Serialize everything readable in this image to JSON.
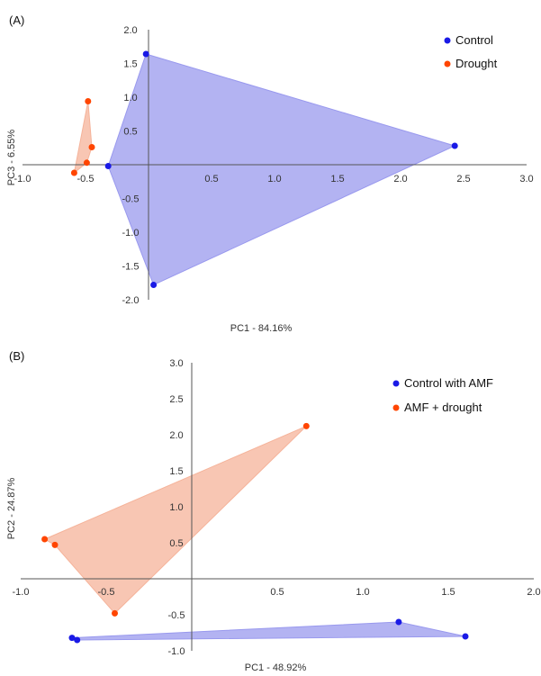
{
  "chart_data": [
    {
      "panel_label": "(A)",
      "type": "scatter",
      "title": "",
      "xlabel": "PC1 - 84.16%",
      "ylabel": "PC3 - 6.55%",
      "xlim": [
        -1.0,
        3.0
      ],
      "ylim": [
        -2.0,
        2.0
      ],
      "xticks": [
        -1.0,
        -0.5,
        0.5,
        1.0,
        1.5,
        2.0,
        2.5,
        3.0
      ],
      "xtick_labels": [
        "-1.0",
        "-0.5",
        "0.5",
        "1.0",
        "1.5",
        "2.0",
        "2.5",
        "3.0"
      ],
      "yticks": [
        2.0,
        1.5,
        1.0,
        0.5,
        -0.5,
        -1.0,
        -1.5,
        -2.0
      ],
      "ytick_labels": [
        "2.0",
        "1.5",
        "1.0",
        "0.5",
        "-0.5",
        "-1.0",
        "-1.5",
        "-2.0"
      ],
      "legend_position": "top-right",
      "series": [
        {
          "name": "Control",
          "color": "#1a1ae6",
          "fill": "#9999ee",
          "points": [
            [
              -0.02,
              1.64
            ],
            [
              2.43,
              0.28
            ],
            [
              0.04,
              -1.78
            ],
            [
              -0.32,
              -0.02
            ]
          ]
        },
        {
          "name": "Drought",
          "color": "#ff4500",
          "fill": "#f5b39a",
          "points": [
            [
              -0.48,
              0.94
            ],
            [
              -0.45,
              0.26
            ],
            [
              -0.49,
              0.03
            ],
            [
              -0.59,
              -0.12
            ]
          ]
        }
      ]
    },
    {
      "panel_label": "(B)",
      "type": "scatter",
      "title": "",
      "xlabel": "PC1 - 48.92%",
      "ylabel": "PC2 - 24.87%",
      "xlim": [
        -1.0,
        2.0
      ],
      "ylim": [
        -1.0,
        3.0
      ],
      "xticks": [
        -1.0,
        -0.5,
        0.5,
        1.0,
        1.5,
        2.0
      ],
      "xtick_labels": [
        "-1.0",
        "-0.5",
        "0.5",
        "1.0",
        "1.5",
        "2.0"
      ],
      "yticks": [
        3.0,
        2.5,
        2.0,
        1.5,
        1.0,
        0.5,
        -0.5,
        -1.0
      ],
      "ytick_labels": [
        "3.0",
        "2.5",
        "2.0",
        "1.5",
        "1.0",
        "0.5",
        "-0.5",
        "-1.0"
      ],
      "legend_position": "top-right",
      "series": [
        {
          "name": "Control with AMF",
          "color": "#1a1ae6",
          "fill": "#9999ee",
          "points": [
            [
              -0.7,
              -0.82
            ],
            [
              1.21,
              -0.6
            ],
            [
              1.6,
              -0.8
            ],
            [
              -0.67,
              -0.85
            ]
          ]
        },
        {
          "name": "AMF + drought",
          "color": "#ff4500",
          "fill": "#f5b39a",
          "points": [
            [
              -0.86,
              0.55
            ],
            [
              0.67,
              2.12
            ],
            [
              -0.45,
              -0.48
            ],
            [
              -0.8,
              0.47
            ]
          ]
        }
      ]
    }
  ]
}
